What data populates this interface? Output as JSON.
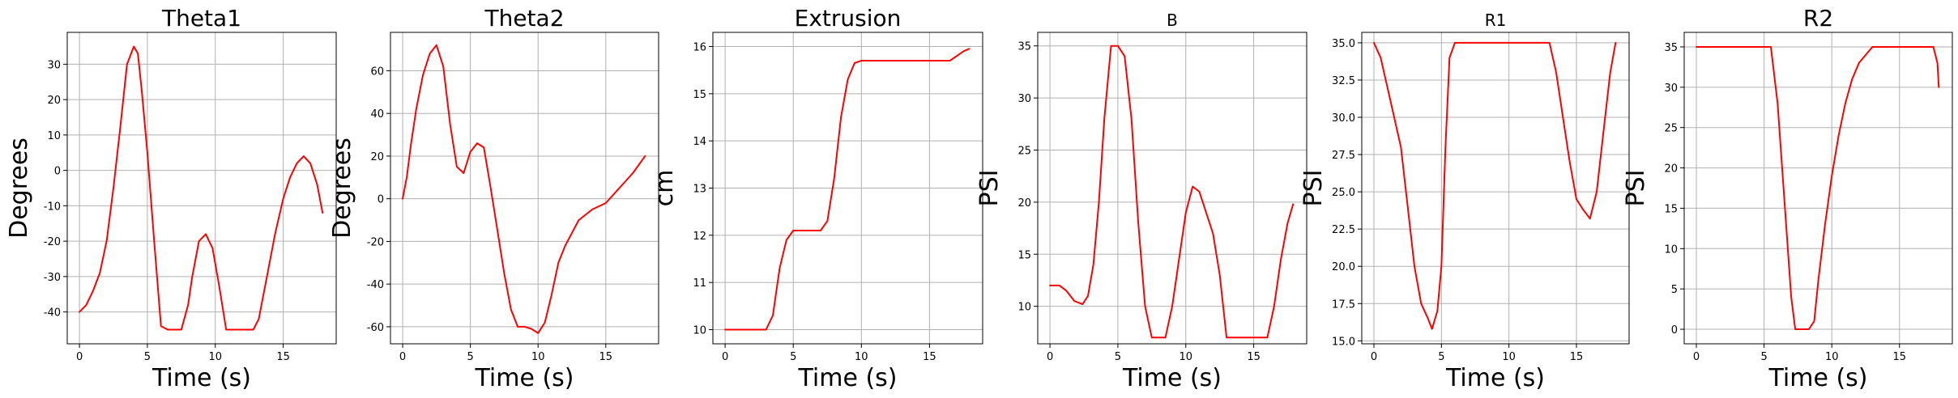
{
  "figure": {
    "background": "#ffffff",
    "line_color": "#ff0000",
    "grid_color": "#b0b0b0"
  },
  "chart_data": [
    {
      "type": "line",
      "title": "Theta1",
      "xlabel": "Time (s)",
      "ylabel": "Degrees",
      "xlim": [
        -0.9,
        18.9
      ],
      "ylim": [
        -49,
        39
      ],
      "xticks": [
        0,
        5,
        10,
        15
      ],
      "yticks": [
        -40,
        -30,
        -20,
        -10,
        0,
        10,
        20,
        30
      ],
      "grid": true,
      "series": [
        {
          "color": "#ff0000",
          "x": [
            0,
            0.5,
            1,
            1.5,
            2,
            2.5,
            3,
            3.5,
            4,
            4.3,
            4.6,
            5,
            5.5,
            6,
            6.5,
            7,
            7.5,
            8,
            8.3,
            8.8,
            9.3,
            9.8,
            10.3,
            10.8,
            11.2,
            11.6,
            12.2,
            12.8,
            13.2,
            13.8,
            14.4,
            15,
            15.5,
            16,
            16.5,
            17,
            17.5,
            17.9
          ],
          "y": [
            -40,
            -38,
            -34,
            -29,
            -20,
            -5,
            12,
            30,
            35,
            33,
            22,
            5,
            -20,
            -44,
            -45,
            -45,
            -45,
            -38,
            -30,
            -20,
            -18,
            -22,
            -33,
            -45,
            -45,
            -45,
            -45,
            -45,
            -42,
            -30,
            -18,
            -8,
            -2,
            2,
            4,
            2,
            -4,
            -12
          ]
        }
      ]
    },
    {
      "type": "line",
      "title": "Theta2",
      "xlabel": "Time (s)",
      "ylabel": "Degrees",
      "xlim": [
        -0.9,
        18.9
      ],
      "ylim": [
        -68,
        78
      ],
      "xticks": [
        0,
        5,
        10,
        15
      ],
      "yticks": [
        -60,
        -40,
        -20,
        0,
        20,
        40,
        60
      ],
      "grid": true,
      "series": [
        {
          "color": "#ff0000",
          "x": [
            0,
            0.3,
            0.6,
            1,
            1.5,
            2,
            2.5,
            3,
            3.5,
            4,
            4.5,
            5,
            5.5,
            6,
            6.5,
            7,
            7.5,
            8,
            8.5,
            9,
            9.5,
            10,
            10.5,
            11,
            11.5,
            12,
            13,
            14,
            15,
            16,
            17,
            17.9
          ],
          "y": [
            0,
            10,
            25,
            42,
            58,
            68,
            72,
            62,
            35,
            15,
            12,
            22,
            26,
            24,
            5,
            -15,
            -35,
            -52,
            -60,
            -60,
            -61,
            -63,
            -58,
            -45,
            -30,
            -22,
            -10,
            -5,
            -2,
            5,
            12,
            20
          ]
        }
      ]
    },
    {
      "type": "line",
      "title": "Extrusion",
      "xlabel": "Time (s)",
      "ylabel": "cm",
      "xlim": [
        -0.9,
        18.9
      ],
      "ylim": [
        9.7,
        16.3
      ],
      "xticks": [
        0,
        5,
        10,
        15
      ],
      "yticks": [
        10,
        11,
        12,
        13,
        14,
        15,
        16
      ],
      "grid": true,
      "series": [
        {
          "color": "#ff0000",
          "x": [
            0,
            1,
            2,
            3,
            3.5,
            4,
            4.5,
            5,
            5.5,
            6,
            7,
            7.5,
            8,
            8.5,
            9,
            9.5,
            10,
            11,
            12,
            13,
            14,
            15,
            16,
            16.5,
            17,
            17.5,
            17.9
          ],
          "y": [
            10,
            10,
            10,
            10,
            10.3,
            11.3,
            11.9,
            12.1,
            12.1,
            12.1,
            12.1,
            12.3,
            13.2,
            14.5,
            15.3,
            15.65,
            15.7,
            15.7,
            15.7,
            15.7,
            15.7,
            15.7,
            15.7,
            15.7,
            15.8,
            15.9,
            15.95
          ]
        }
      ]
    },
    {
      "type": "line",
      "title": "B",
      "xlabel": "Time (s)",
      "ylabel": "PSI",
      "xlim": [
        -0.9,
        18.9
      ],
      "ylim": [
        6.4,
        36.3
      ],
      "xticks": [
        0,
        5,
        10,
        15
      ],
      "yticks": [
        10,
        15,
        20,
        25,
        30,
        35
      ],
      "grid": true,
      "series": [
        {
          "color": "#ff0000",
          "x": [
            0,
            0.7,
            1.2,
            1.8,
            2.4,
            2.8,
            3.2,
            3.6,
            4,
            4.5,
            5,
            5.5,
            6,
            6.5,
            7,
            7.5,
            8,
            8.5,
            9,
            9.5,
            10,
            10.5,
            11,
            11.5,
            12,
            12.5,
            13,
            13.5,
            14,
            14.5,
            15,
            15.5,
            16,
            16.5,
            17,
            17.5,
            17.9
          ],
          "y": [
            12,
            12,
            11.5,
            10.5,
            10.2,
            11,
            14,
            20,
            28,
            35,
            35,
            34,
            28,
            18,
            10,
            7,
            7,
            7,
            10,
            14.5,
            19,
            21.5,
            21,
            19,
            17,
            13,
            7,
            7,
            7,
            7,
            7,
            7,
            7,
            10,
            14.5,
            18,
            19.8
          ]
        }
      ]
    },
    {
      "type": "line",
      "title": "R1",
      "xlabel": "Time (s)",
      "ylabel": "PSI",
      "xlim": [
        -0.9,
        18.9
      ],
      "ylim": [
        14.8,
        35.7
      ],
      "xticks": [
        0,
        5,
        10,
        15
      ],
      "yticks": [
        15.0,
        17.5,
        20.0,
        22.5,
        25.0,
        27.5,
        30.0,
        32.5,
        35.0
      ],
      "ytick_labels": [
        "15.0",
        "17.5",
        "20.0",
        "22.5",
        "25.0",
        "27.5",
        "30.0",
        "32.5",
        "35.0"
      ],
      "grid": true,
      "series": [
        {
          "color": "#ff0000",
          "x": [
            0,
            0.5,
            1,
            1.5,
            2,
            2.5,
            3,
            3.5,
            4,
            4.3,
            4.7,
            5,
            5.3,
            5.6,
            6,
            7,
            8,
            9,
            10,
            11,
            12,
            13,
            13.5,
            14,
            14.5,
            15,
            15.5,
            16,
            16.5,
            17,
            17.5,
            17.9
          ],
          "y": [
            35,
            34,
            32,
            30,
            28,
            24,
            20,
            17.5,
            16.5,
            15.8,
            17,
            20,
            28,
            34,
            35,
            35,
            35,
            35,
            35,
            35,
            35,
            35,
            33,
            30,
            27,
            24.5,
            23.8,
            23.2,
            25,
            29,
            33,
            35
          ]
        }
      ]
    },
    {
      "type": "line",
      "title": "R2",
      "xlabel": "Time (s)",
      "ylabel": "PSI",
      "xlim": [
        -0.9,
        18.9
      ],
      "ylim": [
        -1.8,
        36.8
      ],
      "xticks": [
        0,
        5,
        10,
        15
      ],
      "yticks": [
        0,
        5,
        10,
        15,
        20,
        25,
        30,
        35
      ],
      "grid": true,
      "series": [
        {
          "color": "#ff0000",
          "x": [
            0,
            1,
            2,
            3,
            4,
            5,
            5.5,
            6,
            6.5,
            7,
            7.3,
            7.6,
            8,
            8.3,
            8.7,
            9,
            9.5,
            10,
            10.5,
            11,
            11.5,
            12,
            12.5,
            13,
            14,
            15,
            16,
            17,
            17.5,
            17.8,
            17.9
          ],
          "y": [
            35,
            35,
            35,
            35,
            35,
            35,
            35,
            28,
            16,
            4,
            0,
            0,
            0,
            0,
            1,
            6,
            13,
            19,
            24,
            28,
            31,
            33,
            34,
            35,
            35,
            35,
            35,
            35,
            35,
            33,
            30
          ]
        }
      ]
    }
  ]
}
